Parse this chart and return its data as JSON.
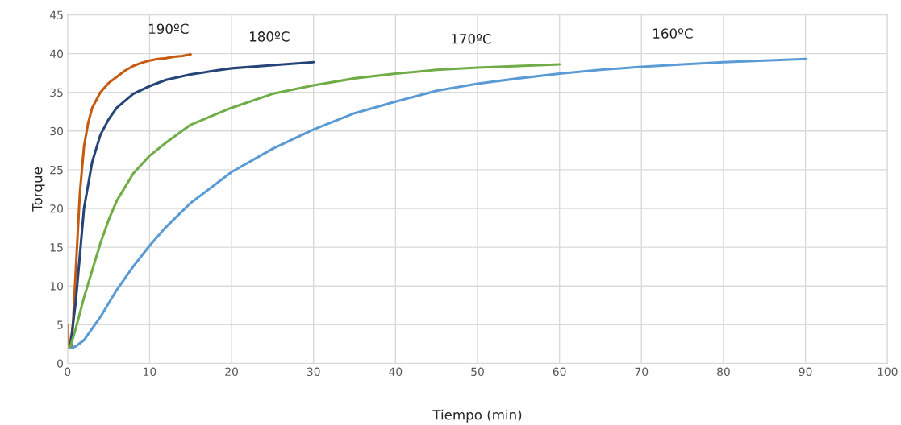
{
  "chart_data": {
    "type": "line",
    "xlabel": "Tiempo (min)",
    "ylabel": "Torque",
    "xlim": [
      0,
      100
    ],
    "ylim": [
      0,
      45
    ],
    "xticks": [
      0,
      10,
      20,
      30,
      40,
      50,
      60,
      70,
      80,
      90,
      100
    ],
    "yticks": [
      0,
      5,
      10,
      15,
      20,
      25,
      30,
      35,
      40,
      45
    ],
    "grid": true,
    "legend": false,
    "series": [
      {
        "name": "190ºC",
        "color": "#c55a11",
        "x": [
          0,
          0.2,
          0.5,
          1,
          1.5,
          2,
          2.5,
          3,
          4,
          5,
          6,
          7,
          8,
          9,
          10,
          11,
          12,
          13,
          14,
          15
        ],
        "values": [
          5,
          2,
          2,
          12,
          22,
          28,
          31,
          33,
          35,
          36.2,
          37,
          37.8,
          38.4,
          38.8,
          39.1,
          39.3,
          39.4,
          39.6,
          39.7,
          39.9
        ]
      },
      {
        "name": "180ºC",
        "color": "#264478",
        "x": [
          0.3,
          1,
          1.5,
          2,
          3,
          4,
          5,
          6,
          8,
          10,
          12,
          15,
          18,
          20,
          25,
          30
        ],
        "values": [
          2,
          8,
          14,
          20,
          26,
          29.5,
          31.5,
          33,
          34.8,
          35.8,
          36.6,
          37.3,
          37.8,
          38.1,
          38.5,
          38.9
        ]
      },
      {
        "name": "170ºC",
        "color": "#70ad47",
        "x": [
          0.3,
          1,
          2,
          3,
          4,
          5,
          6,
          8,
          10,
          12,
          15,
          20,
          25,
          30,
          35,
          40,
          45,
          50,
          55,
          60
        ],
        "values": [
          2,
          4.5,
          8.5,
          12,
          15.5,
          18.5,
          21,
          24.5,
          26.8,
          28.5,
          30.8,
          33,
          34.8,
          35.9,
          36.8,
          37.4,
          37.9,
          38.2,
          38.4,
          38.6
        ]
      },
      {
        "name": "160ºC",
        "color": "#5b9bd5",
        "x": [
          0.5,
          1,
          2,
          3,
          4,
          6,
          8,
          10,
          12,
          15,
          20,
          25,
          30,
          35,
          40,
          45,
          50,
          55,
          60,
          65,
          70,
          75,
          80,
          85,
          90
        ],
        "values": [
          2,
          2.2,
          3,
          4.5,
          6,
          9.5,
          12.5,
          15.2,
          17.6,
          20.7,
          24.7,
          27.7,
          30.2,
          32.3,
          33.8,
          35.2,
          36.1,
          36.8,
          37.4,
          37.9,
          38.3,
          38.6,
          38.9,
          39.1,
          39.3
        ]
      }
    ]
  }
}
